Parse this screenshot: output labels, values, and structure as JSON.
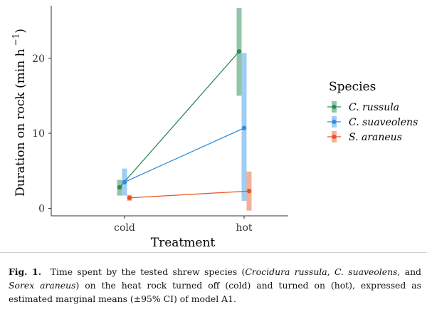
{
  "chart_data": {
    "type": "line",
    "title": "",
    "xlabel": "Treatment",
    "ylabel": "Duration on rock (min h",
    "ylabel_superscript": "−1",
    "categories": [
      "cold",
      "hot"
    ],
    "ylim": [
      -1,
      27
    ],
    "yticks": [
      0,
      10,
      20
    ],
    "grid": false,
    "legend_title": "Species",
    "legend_position": "right",
    "series": [
      {
        "name": "C. russula",
        "color": "#2e8b57",
        "ci_color": "#7fbb98",
        "values": [
          2.8,
          20.9
        ],
        "ci_low": [
          1.7,
          15.0
        ],
        "ci_high": [
          3.8,
          26.7
        ]
      },
      {
        "name": "C. suaveolens",
        "color": "#2b8fe0",
        "ci_color": "#8fc4f0",
        "values": [
          3.5,
          10.7
        ],
        "ci_low": [
          1.7,
          1.0
        ],
        "ci_high": [
          5.3,
          20.7
        ]
      },
      {
        "name": "S. araneus",
        "color": "#e8531e",
        "ci_color": "#f2a286",
        "values": [
          1.4,
          2.3
        ],
        "ci_low": [
          1.0,
          -0.3
        ],
        "ci_high": [
          1.8,
          4.9
        ]
      }
    ]
  },
  "caption": {
    "label": "Fig. 1.",
    "t1": "Time spent by the tested shrew species (",
    "sp1": "Crocidura russula",
    "t2": ", ",
    "sp2": "C. suaveolens",
    "t3": ", and ",
    "sp3": "Sorex araneus",
    "t4": ") on the heat rock turned off (cold) and turned on (hot), expressed as estimated marginal means (±95% CI) of model A1."
  }
}
